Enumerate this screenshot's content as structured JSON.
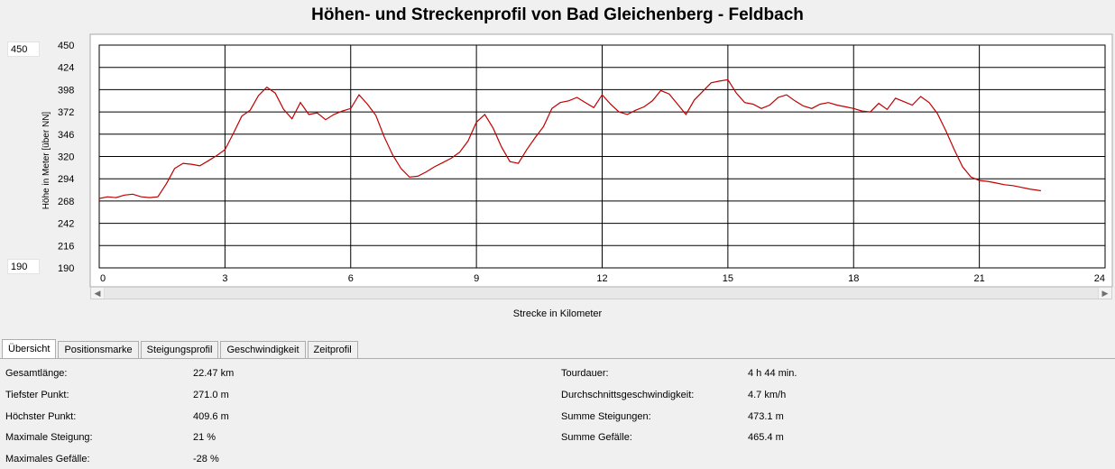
{
  "chart_data": {
    "type": "line",
    "title": "Höhen- und Streckenprofil von Bad Gleichenberg - Feldbach",
    "xlabel": "Strecke in Kilometer",
    "ylabel": "Höhe in Meter [über NN]",
    "xlim": [
      0,
      24
    ],
    "ylim": [
      190,
      450
    ],
    "xticks": [
      "0",
      "3",
      "6",
      "9",
      "12",
      "15",
      "18",
      "21",
      "24"
    ],
    "yticks": [
      "450",
      "424",
      "398",
      "372",
      "346",
      "320",
      "294",
      "268",
      "242",
      "216",
      "190"
    ],
    "grid": true,
    "line_color": "#c00000",
    "x": [
      0,
      0.2,
      0.4,
      0.6,
      0.8,
      1.0,
      1.2,
      1.4,
      1.6,
      1.8,
      2.0,
      2.2,
      2.4,
      2.6,
      2.8,
      3.0,
      3.2,
      3.4,
      3.6,
      3.8,
      4.0,
      4.2,
      4.4,
      4.6,
      4.8,
      5.0,
      5.2,
      5.4,
      5.6,
      5.8,
      6.0,
      6.2,
      6.4,
      6.6,
      6.8,
      7.0,
      7.2,
      7.4,
      7.6,
      7.8,
      8.0,
      8.2,
      8.4,
      8.6,
      8.8,
      9.0,
      9.2,
      9.4,
      9.6,
      9.8,
      10.0,
      10.2,
      10.4,
      10.6,
      10.8,
      11.0,
      11.2,
      11.4,
      11.6,
      11.8,
      12.0,
      12.2,
      12.4,
      12.6,
      12.8,
      13.0,
      13.2,
      13.4,
      13.6,
      13.8,
      14.0,
      14.2,
      14.4,
      14.6,
      14.8,
      15.0,
      15.2,
      15.4,
      15.6,
      15.8,
      16.0,
      16.2,
      16.4,
      16.6,
      16.8,
      17.0,
      17.2,
      17.4,
      17.6,
      17.8,
      18.0,
      18.2,
      18.4,
      18.6,
      18.8,
      19.0,
      19.2,
      19.4,
      19.6,
      19.8,
      20.0,
      20.2,
      20.4,
      20.6,
      20.8,
      21.0,
      21.2,
      21.4,
      21.6,
      21.8,
      22.0,
      22.2,
      22.47
    ],
    "y": [
      271,
      273,
      272,
      275,
      276,
      273,
      272,
      273,
      288,
      306,
      312,
      311,
      309,
      315,
      321,
      328,
      347,
      367,
      374,
      391,
      401,
      394,
      375,
      364,
      383,
      369,
      371,
      363,
      369,
      373,
      376,
      392,
      381,
      368,
      343,
      322,
      306,
      296,
      297,
      302,
      308,
      313,
      318,
      325,
      338,
      360,
      369,
      353,
      331,
      314,
      312,
      328,
      342,
      355,
      376,
      383,
      385,
      389,
      383,
      377,
      392,
      381,
      372,
      369,
      374,
      378,
      385,
      397,
      393,
      381,
      369,
      386,
      396,
      406,
      408,
      409.6,
      394,
      383,
      381,
      376,
      380,
      389,
      392,
      385,
      379,
      376,
      381,
      383,
      380,
      378,
      376,
      373,
      372,
      382,
      375,
      388,
      384,
      380,
      390,
      383,
      370,
      350,
      328,
      308,
      296,
      292,
      291,
      289,
      287,
      286,
      284,
      282,
      280
    ]
  },
  "range_box": {
    "max": "450",
    "min": "190"
  },
  "scroll": {
    "left": "◀",
    "right": "▶"
  },
  "tabs": [
    {
      "label": "Übersicht"
    },
    {
      "label": "Positionsmarke"
    },
    {
      "label": "Steigungsprofil"
    },
    {
      "label": "Geschwindigkeit"
    },
    {
      "label": "Zeitprofil"
    }
  ],
  "stats_left": [
    {
      "label": "Gesamtlänge:",
      "value": "22.47 km"
    },
    {
      "label": "Tiefster Punkt:",
      "value": "271.0 m"
    },
    {
      "label": "Höchster Punkt:",
      "value": "409.6 m"
    },
    {
      "label": "Maximale Steigung:",
      "value": "21 %"
    },
    {
      "label": "Maximales Gefälle:",
      "value": "-28 %"
    }
  ],
  "stats_right": [
    {
      "label": "Tourdauer:",
      "value": "4 h 44 min."
    },
    {
      "label": "Durchschnittsgeschwindigkeit:",
      "value": "4.7 km/h"
    },
    {
      "label": "Summe Steigungen:",
      "value": "473.1 m"
    },
    {
      "label": "Summe Gefälle:",
      "value": "465.4 m"
    }
  ]
}
